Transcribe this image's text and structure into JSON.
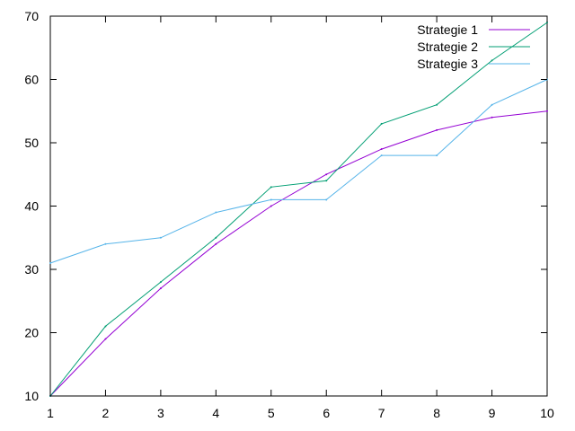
{
  "chart_data": {
    "type": "line",
    "x": [
      1,
      2,
      3,
      4,
      5,
      6,
      7,
      8,
      9,
      10
    ],
    "series": [
      {
        "name": "Strategie 1",
        "color": "#9400d3",
        "values": [
          10,
          19,
          27,
          34,
          40,
          45,
          49,
          52,
          54,
          55
        ]
      },
      {
        "name": "Strategie 2",
        "color": "#009e73",
        "values": [
          10,
          21,
          28,
          35,
          43,
          44,
          53,
          56,
          63,
          69
        ]
      },
      {
        "name": "Strategie 3",
        "color": "#56b4e9",
        "values": [
          31,
          34,
          35,
          39,
          41,
          41,
          48,
          48,
          56,
          60
        ]
      }
    ],
    "xlim": [
      1,
      10
    ],
    "ylim": [
      10,
      70
    ],
    "xticks": [
      1,
      2,
      3,
      4,
      5,
      6,
      7,
      8,
      9,
      10
    ],
    "yticks": [
      10,
      20,
      30,
      40,
      50,
      60,
      70
    ],
    "title": "",
    "xlabel": "",
    "ylabel": "",
    "grid": false,
    "legend_position": "top-right"
  }
}
